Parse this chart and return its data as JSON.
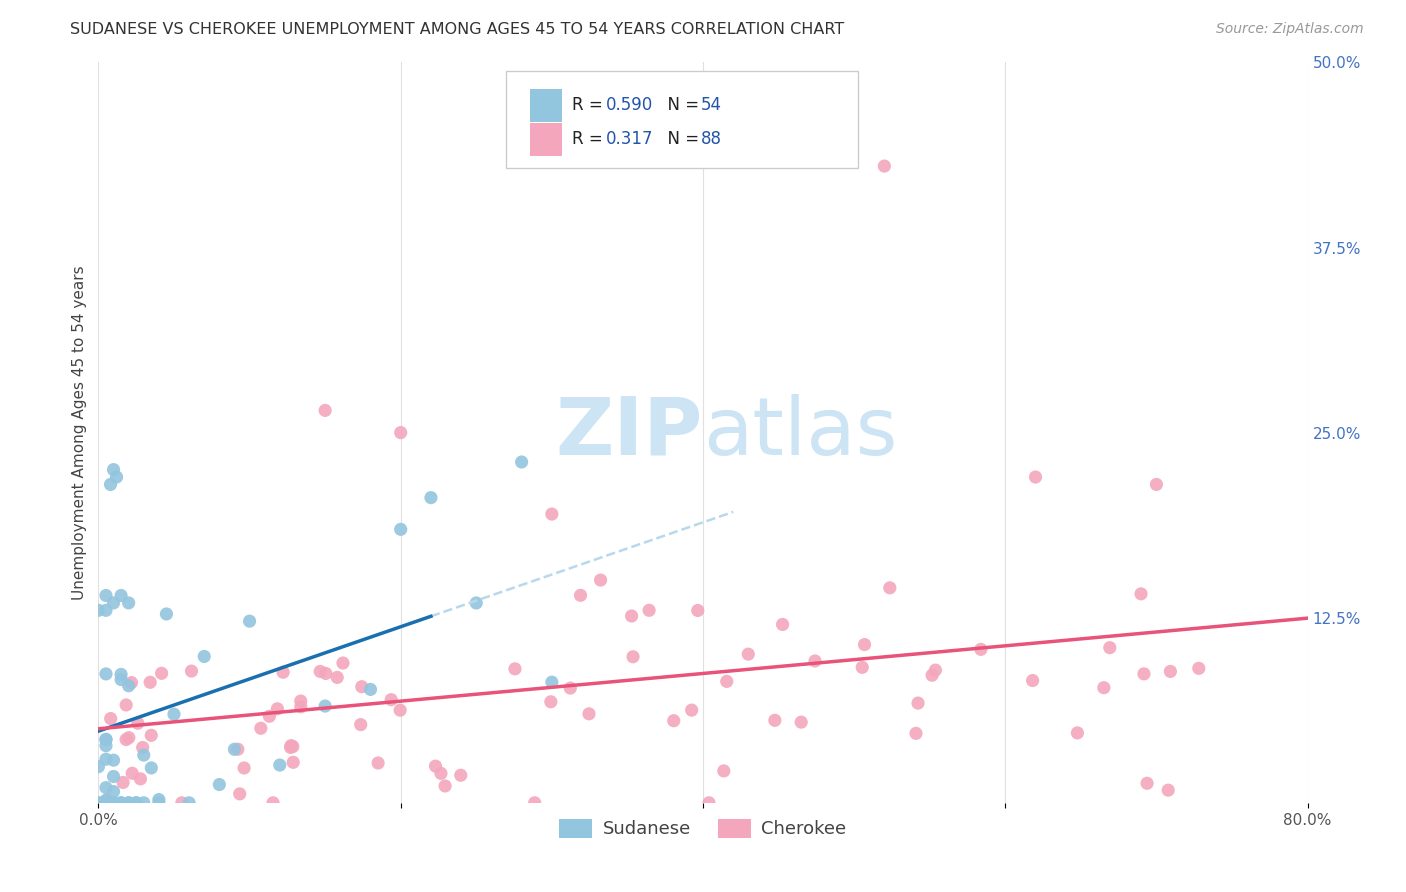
{
  "title": "SUDANESE VS CHEROKEE UNEMPLOYMENT AMONG AGES 45 TO 54 YEARS CORRELATION CHART",
  "source": "Source: ZipAtlas.com",
  "ylabel": "Unemployment Among Ages 45 to 54 years",
  "xlim": [
    0.0,
    0.8
  ],
  "ylim": [
    0.0,
    0.5
  ],
  "xtick_vals": [
    0.0,
    0.2,
    0.4,
    0.6,
    0.8
  ],
  "xtick_labels": [
    "0.0%",
    "",
    "",
    "",
    "80.0%"
  ],
  "ytick_vals": [
    0.0,
    0.125,
    0.25,
    0.375,
    0.5
  ],
  "ytick_labels": [
    "",
    "12.5%",
    "25.0%",
    "37.5%",
    "50.0%"
  ],
  "sudanese_color": "#92c5de",
  "cherokee_color": "#f4a6bc",
  "sudanese_line_color": "#1a6faf",
  "cherokee_line_color": "#e8537a",
  "sudanese_dashed_color": "#b8d8ec",
  "legend_text_color": "#2255aa",
  "background_color": "#ffffff",
  "watermark_zip": "ZIP",
  "watermark_atlas": "atlas",
  "watermark_color": "#cce4f4",
  "R_sudanese": 0.59,
  "N_sudanese": 54,
  "R_cherokee": 0.317,
  "N_cherokee": 88,
  "title_fontsize": 11.5,
  "source_fontsize": 10,
  "axis_fontsize": 11,
  "legend_fontsize": 13,
  "watermark_fontsize": 58
}
